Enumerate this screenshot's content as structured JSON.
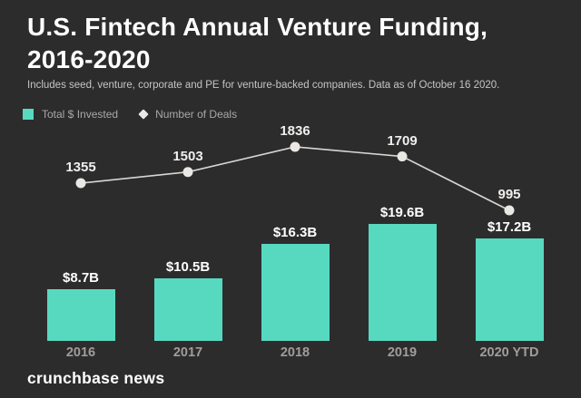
{
  "header": {
    "title_line1": "U.S. Fintech Annual Venture Funding,",
    "title_line2": "2016-2020",
    "subtitle": "Includes seed, venture, corporate and PE for venture-backed companies. Data as of October 16 2020."
  },
  "legend": {
    "items": [
      {
        "label": "Total $ Invested",
        "marker": "teal-square"
      },
      {
        "label": "Number of Deals",
        "marker": "light-diamond"
      }
    ]
  },
  "colors": {
    "background": "#2d2c2c",
    "bar": "#57d9c0",
    "line": "#d9d7d3",
    "marker": "#eae8e4",
    "title_text": "#ffffff",
    "muted_text": "#a9a8a6"
  },
  "footer": {
    "brand": "crunchbase news"
  },
  "chart_data": {
    "type": "bar",
    "subtype": "bar-line-combo",
    "title": "U.S. Fintech Annual Venture Funding, 2016-2020",
    "categories": [
      "2016",
      "2017",
      "2018",
      "2019",
      "2020 YTD"
    ],
    "series": [
      {
        "name": "Total $ Invested",
        "type": "bar",
        "unit": "USD billions",
        "values": [
          8.7,
          10.5,
          16.3,
          19.6,
          17.2
        ],
        "labels": [
          "$8.7B",
          "$10.5B",
          "$16.3B",
          "$19.6B",
          "$17.2B"
        ]
      },
      {
        "name": "Number of Deals",
        "type": "line",
        "values": [
          1355,
          1503,
          1836,
          1709,
          995
        ]
      }
    ],
    "xlabel": "",
    "ylabel": "",
    "grid": false,
    "legend_position": "top-left",
    "bar_axis_range": [
      0,
      22
    ],
    "line_axis_range": [
      0,
      2100
    ]
  }
}
